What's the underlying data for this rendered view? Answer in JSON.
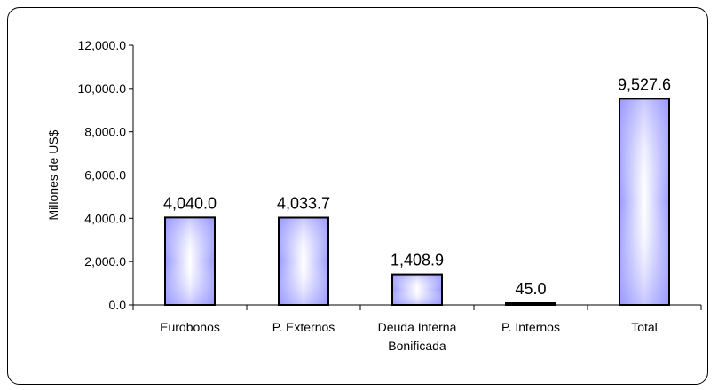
{
  "chart_data": {
    "type": "bar",
    "title": "",
    "xlabel": "",
    "ylabel": "Millones de US$",
    "categories": [
      [
        "Eurobonos"
      ],
      [
        "P. Externos"
      ],
      [
        "Deuda Interna",
        "Bonificada"
      ],
      [
        "P. Internos"
      ],
      [
        "Total"
      ]
    ],
    "values": [
      4040.0,
      4033.7,
      1408.9,
      45.0,
      9527.6
    ],
    "value_labels": [
      "4,040.0",
      "4,033.7",
      "1,408.9",
      "45.0",
      "9,527.6"
    ],
    "yticks": [
      0,
      2000,
      4000,
      6000,
      8000,
      10000,
      12000
    ],
    "ytick_labels": [
      "0.0",
      "2,000.0",
      "4,000.0",
      "6,000.0",
      "8,000.0",
      "10,000.0",
      "12,000.0"
    ],
    "ylim": [
      0,
      12000
    ],
    "grid": false,
    "legend": "none",
    "colors": {
      "bar_center": "#ffffff",
      "bar_edge": "#9999ff",
      "bar_outline": "#000000"
    }
  }
}
